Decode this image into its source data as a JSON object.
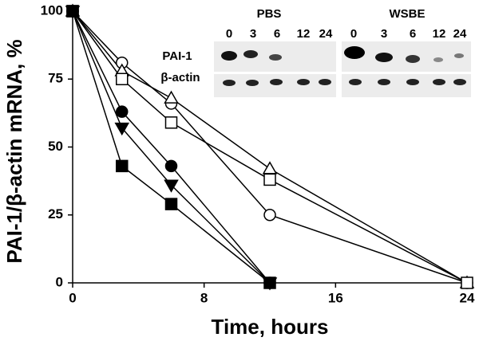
{
  "chart_data": {
    "type": "line",
    "xlabel": "Time, hours",
    "ylabel": "PAI-1/β-actin mRNA, %",
    "x": [
      0,
      3,
      6,
      12,
      24
    ],
    "xlim": [
      0,
      24
    ],
    "xticks": [
      0,
      8,
      16,
      24
    ],
    "ylim": [
      0,
      100
    ],
    "yticks": [
      0,
      25,
      50,
      75,
      100
    ],
    "series": [
      {
        "marker": "circle",
        "color": "#ffffff",
        "values": [
          100,
          81,
          66,
          25,
          0
        ]
      },
      {
        "marker": "triangle-up",
        "color": "#ffffff",
        "values": [
          100,
          78,
          68,
          42,
          0
        ]
      },
      {
        "marker": "square",
        "color": "#ffffff",
        "values": [
          100,
          75,
          59,
          38,
          0
        ]
      },
      {
        "marker": "circle",
        "color": "#000000",
        "values": [
          100,
          63,
          43,
          0,
          null
        ]
      },
      {
        "marker": "triangle-down",
        "color": "#000000",
        "values": [
          100,
          57,
          36,
          0,
          null
        ]
      },
      {
        "marker": "square",
        "color": "#000000",
        "values": [
          100,
          43,
          29,
          0,
          null
        ]
      }
    ],
    "inset": {
      "rows": [
        "PAI-1",
        "β-actin"
      ],
      "groups": [
        {
          "label": "PBS",
          "lanes": [
            "0",
            "3",
            "6",
            "12",
            "24"
          ]
        },
        {
          "label": "WSBE",
          "lanes": [
            "0",
            "3",
            "6",
            "12",
            "24"
          ]
        }
      ]
    }
  }
}
